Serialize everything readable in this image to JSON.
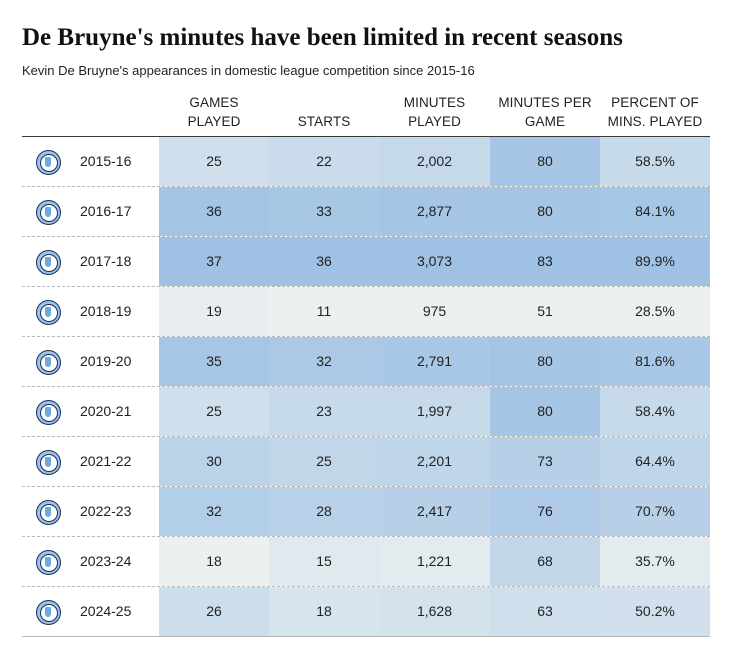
{
  "title": "De Bruyne's minutes have been limited in recent seasons",
  "subtitle": "Kevin De Bruyne's appearances in domestic league competition since 2015-16",
  "columns": {
    "games": [
      "GAMES",
      "PLAYED"
    ],
    "starts": [
      "STARTS"
    ],
    "minutes": [
      "MINUTES",
      "PLAYED"
    ],
    "mpg": [
      "MINUTES PER",
      "GAME"
    ],
    "pct": [
      "PERCENT OF",
      "MINS. PLAYED"
    ]
  },
  "badge_icon": "manchester-city-crest-icon",
  "colors": {
    "low": "#f1f4f1",
    "high": "#9fc1e4",
    "header_rule": "#3a3a3a",
    "row_rule": "#b9b9b9"
  },
  "rows": [
    {
      "season": "2015-16",
      "games": "25",
      "starts": "22",
      "minutes": "2,002",
      "mpg": "80",
      "pct": "58.5%"
    },
    {
      "season": "2016-17",
      "games": "36",
      "starts": "33",
      "minutes": "2,877",
      "mpg": "80",
      "pct": "84.1%"
    },
    {
      "season": "2017-18",
      "games": "37",
      "starts": "36",
      "minutes": "3,073",
      "mpg": "83",
      "pct": "89.9%"
    },
    {
      "season": "2018-19",
      "games": "19",
      "starts": "11",
      "minutes": "975",
      "mpg": "51",
      "pct": "28.5%"
    },
    {
      "season": "2019-20",
      "games": "35",
      "starts": "32",
      "minutes": "2,791",
      "mpg": "80",
      "pct": "81.6%"
    },
    {
      "season": "2020-21",
      "games": "25",
      "starts": "23",
      "minutes": "1,997",
      "mpg": "80",
      "pct": "58.4%"
    },
    {
      "season": "2021-22",
      "games": "30",
      "starts": "25",
      "minutes": "2,201",
      "mpg": "73",
      "pct": "64.4%"
    },
    {
      "season": "2022-23",
      "games": "32",
      "starts": "28",
      "minutes": "2,417",
      "mpg": "76",
      "pct": "70.7%"
    },
    {
      "season": "2023-24",
      "games": "18",
      "starts": "15",
      "minutes": "1,221",
      "mpg": "68",
      "pct": "35.7%"
    },
    {
      "season": "2024-25",
      "games": "26",
      "starts": "18",
      "minutes": "1,628",
      "mpg": "63",
      "pct": "50.2%"
    }
  ]
}
